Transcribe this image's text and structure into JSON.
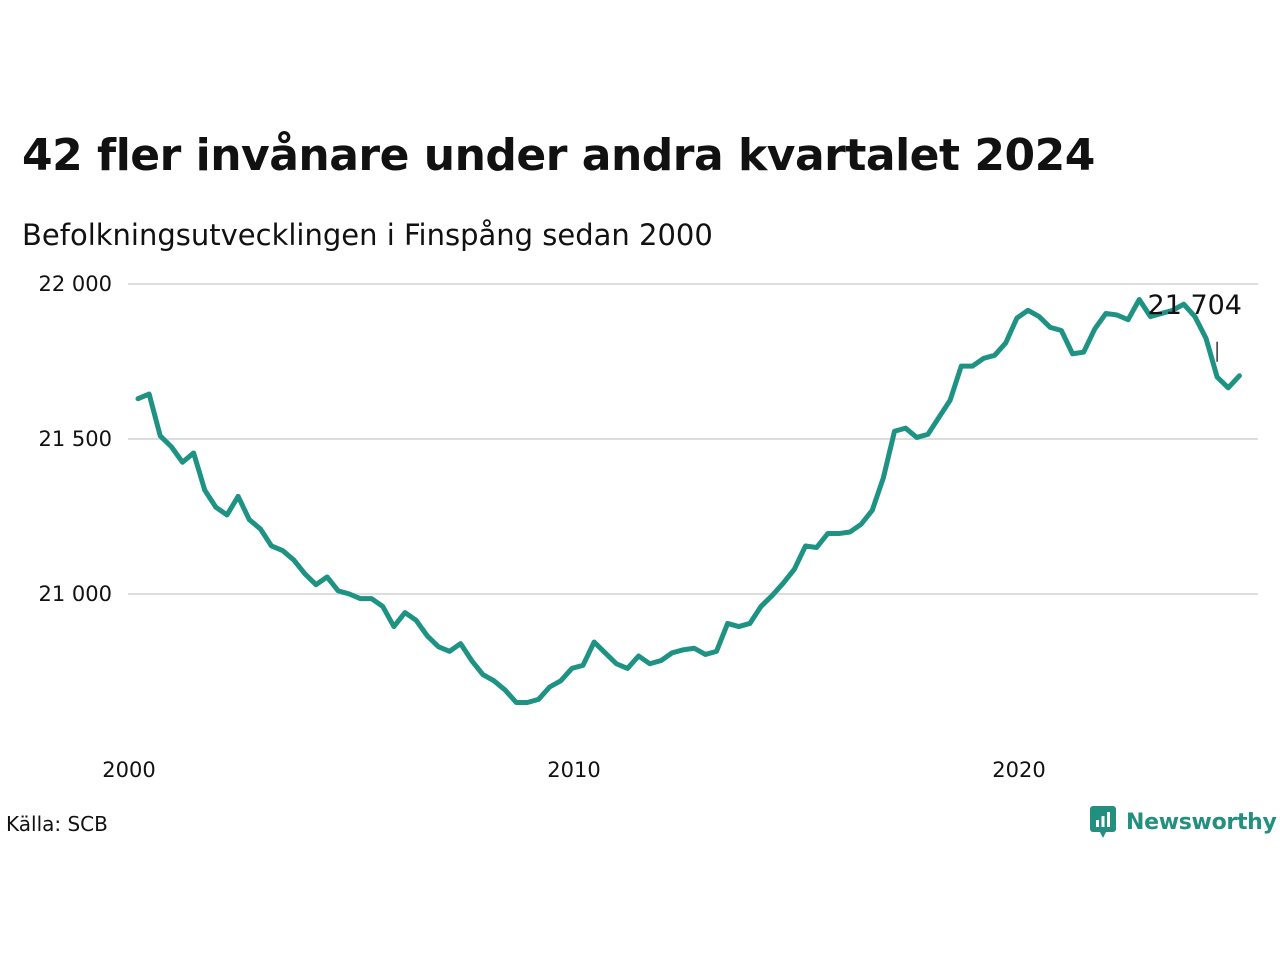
{
  "title": "42 fler invånare under andra kvartalet 2024",
  "subtitle": "Befolkningsutvecklingen i Finspång sedan 2000",
  "source": "Källa: SCB",
  "brand": {
    "name": "Newsworthy",
    "color": "#23907f",
    "icon": "newsworthy-logo-icon"
  },
  "colors": {
    "line": "#1e9384",
    "grid": "#dddddd",
    "text": "#111111"
  },
  "chart_data": {
    "type": "line",
    "title": "42 fler invånare under andra kvartalet 2024",
    "subtitle": "Befolkningsutvecklingen i Finspång sedan 2000",
    "xlabel": "",
    "ylabel": "",
    "xlim": [
      2000,
      2024.75
    ],
    "ylim": [
      20500,
      22000
    ],
    "x_ticks": [
      2000,
      2010,
      2020
    ],
    "x_tick_labels": [
      "2000",
      "2010",
      "2020"
    ],
    "y_ticks": [
      21000,
      21500,
      22000
    ],
    "y_tick_labels": [
      "21 000",
      "21 500",
      "22 000"
    ],
    "grid": true,
    "legend": "none",
    "annotation": {
      "x": 2024.25,
      "y": 21704,
      "label": "21 704"
    },
    "series": [
      {
        "values_start": 2000.25,
        "values_step": 0.25,
        "values": [
          21630,
          21645,
          21510,
          21475,
          21425,
          21455,
          21335,
          21280,
          21255,
          21315,
          21240,
          21210,
          21155,
          21140,
          21110,
          21065,
          21030,
          21055,
          21010,
          21000,
          20985,
          20985,
          20960,
          20895,
          20940,
          20915,
          20865,
          20830,
          20815,
          20840,
          20785,
          20740,
          20720,
          20690,
          20650,
          20650,
          20660,
          20700,
          20720,
          20760,
          20770,
          20845,
          20810,
          20775,
          20760,
          20800,
          20775,
          20785,
          20810,
          20820,
          20825,
          20805,
          20815,
          20905,
          20895,
          20905,
          20960,
          20995,
          21035,
          21080,
          21155,
          21150,
          21195,
          21195,
          21200,
          21225,
          21270,
          21375,
          21525,
          21535,
          21505,
          21515,
          21570,
          21625,
          21735,
          21735,
          21760,
          21770,
          21810,
          21890,
          21915,
          21895,
          21860,
          21850,
          21775,
          21780,
          21855,
          21905,
          21900,
          21885,
          21950,
          21895,
          21905,
          21915,
          21935,
          21895,
          21825,
          21700,
          21665,
          21704
        ]
      }
    ]
  }
}
